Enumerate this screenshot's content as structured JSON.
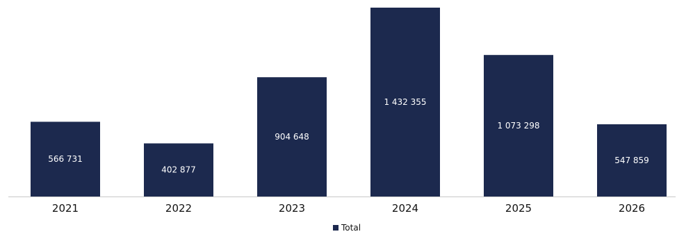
{
  "chart_data": {
    "type": "bar",
    "categories": [
      "2021",
      "2022",
      "2023",
      "2024",
      "2025",
      "2026"
    ],
    "series": [
      {
        "name": "Total",
        "values": [
          566731,
          402877,
          904648,
          1432355,
          1073298,
          547859
        ],
        "labels": [
          "566 731",
          "402 877",
          "904 648",
          "1 432 355",
          "1 073 298",
          "547 859"
        ],
        "color": "#1c294e"
      }
    ],
    "ylim": [
      0,
      1432355
    ],
    "grid": false,
    "legend_position": "bottom"
  }
}
